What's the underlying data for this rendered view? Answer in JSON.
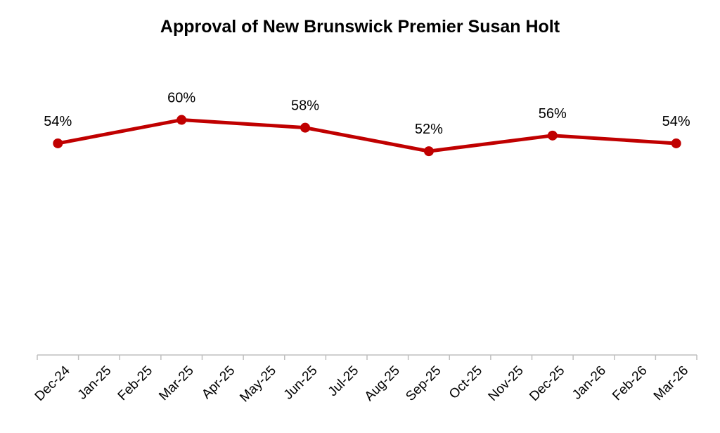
{
  "chart_data": {
    "type": "line",
    "title": "Approval of New Brunswick Premier Susan Holt",
    "xlabel": "",
    "ylabel": "",
    "categories": [
      "Dec-24",
      "Jan-25",
      "Feb-25",
      "Mar-25",
      "Apr-25",
      "May-25",
      "Jun-25",
      "Jul-25",
      "Aug-25",
      "Sep-25",
      "Oct-25",
      "Nov-25",
      "Dec-25",
      "Jan-26",
      "Feb-26",
      "Mar-26"
    ],
    "series": [
      {
        "color": "#c00000",
        "points": [
          {
            "x": "Dec-24",
            "y": 54,
            "label": "54%"
          },
          {
            "x": "Mar-25",
            "y": 60,
            "label": "60%"
          },
          {
            "x": "Jun-25",
            "y": 58,
            "label": "58%"
          },
          {
            "x": "Sep-25",
            "y": 52,
            "label": "52%"
          },
          {
            "x": "Dec-25",
            "y": 56,
            "label": "56%"
          },
          {
            "x": "Mar-26",
            "y": 54,
            "label": "54%"
          }
        ]
      }
    ],
    "ylim": [
      0,
      87
    ],
    "grid": false,
    "legend": "none",
    "axis_color": "#bfbfbf"
  }
}
